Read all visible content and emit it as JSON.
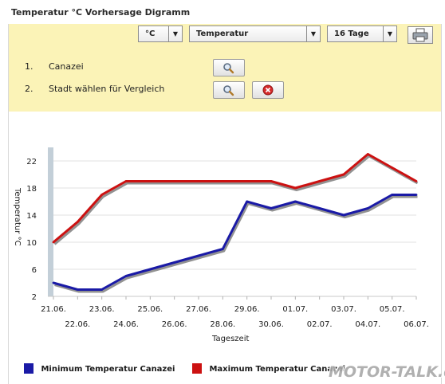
{
  "window": {
    "title": "Temperatur °C Vorhersage Digramm"
  },
  "toolbar": {
    "unit_select": "°C",
    "type_select": "Temperatur",
    "days_select": "16 Tage",
    "arrow_glyph": "▼",
    "print_icon": "printer-icon"
  },
  "cities": [
    {
      "num": "1.",
      "name": "Canazei",
      "search_icon": "magnifier-icon"
    },
    {
      "num": "2.",
      "name": "Stadt wählen für Vergleich",
      "search_icon": "magnifier-icon",
      "remove_icon": "red-x-icon"
    }
  ],
  "colors": {
    "panel_bg": "#fbf3b7",
    "min_line": "#1a1aa6",
    "max_line": "#cc1111",
    "shadow": "#6e6e6e",
    "axis_bar": "#c3cfd8",
    "grid": "#e2e2e2"
  },
  "chart_data": {
    "type": "line",
    "ylabel": "Temperatur °C",
    "xlabel": "Tageszeit",
    "ylim": [
      2,
      24
    ],
    "yticks": [
      2,
      6,
      10,
      14,
      18,
      22
    ],
    "x_upper": [
      "21.06.",
      "23.06.",
      "25.06.",
      "27.06.",
      "29.06.",
      "01.07.",
      "03.07.",
      "05.07."
    ],
    "x_lower": [
      "22.06.",
      "24.06.",
      "26.06.",
      "28.06.",
      "30.06.",
      "02.07.",
      "04.07.",
      "06.07."
    ],
    "categories": [
      "21.06.",
      "22.06.",
      "23.06.",
      "24.06.",
      "25.06.",
      "26.06.",
      "27.06.",
      "28.06.",
      "29.06.",
      "30.06.",
      "01.07.",
      "02.07.",
      "03.07.",
      "04.07.",
      "05.07.",
      "06.07."
    ],
    "grid": true,
    "series": [
      {
        "name": "Minimum Temperatur Canazei",
        "values": [
          4,
          3,
          3,
          5,
          6,
          7,
          8,
          9,
          16,
          15,
          16,
          15,
          14,
          15,
          17,
          17
        ]
      },
      {
        "name": "Maximum Temperatur Canazei",
        "values": [
          10,
          13,
          17,
          19,
          19,
          19,
          19,
          19,
          19,
          19,
          18,
          19,
          20,
          23,
          21,
          19
        ]
      }
    ]
  },
  "legend": {
    "min_label": "Minimum Temperatur Canazei",
    "max_label": "Maximum Temperatur Canazei"
  },
  "watermark": "MOTOR-TALK.de"
}
